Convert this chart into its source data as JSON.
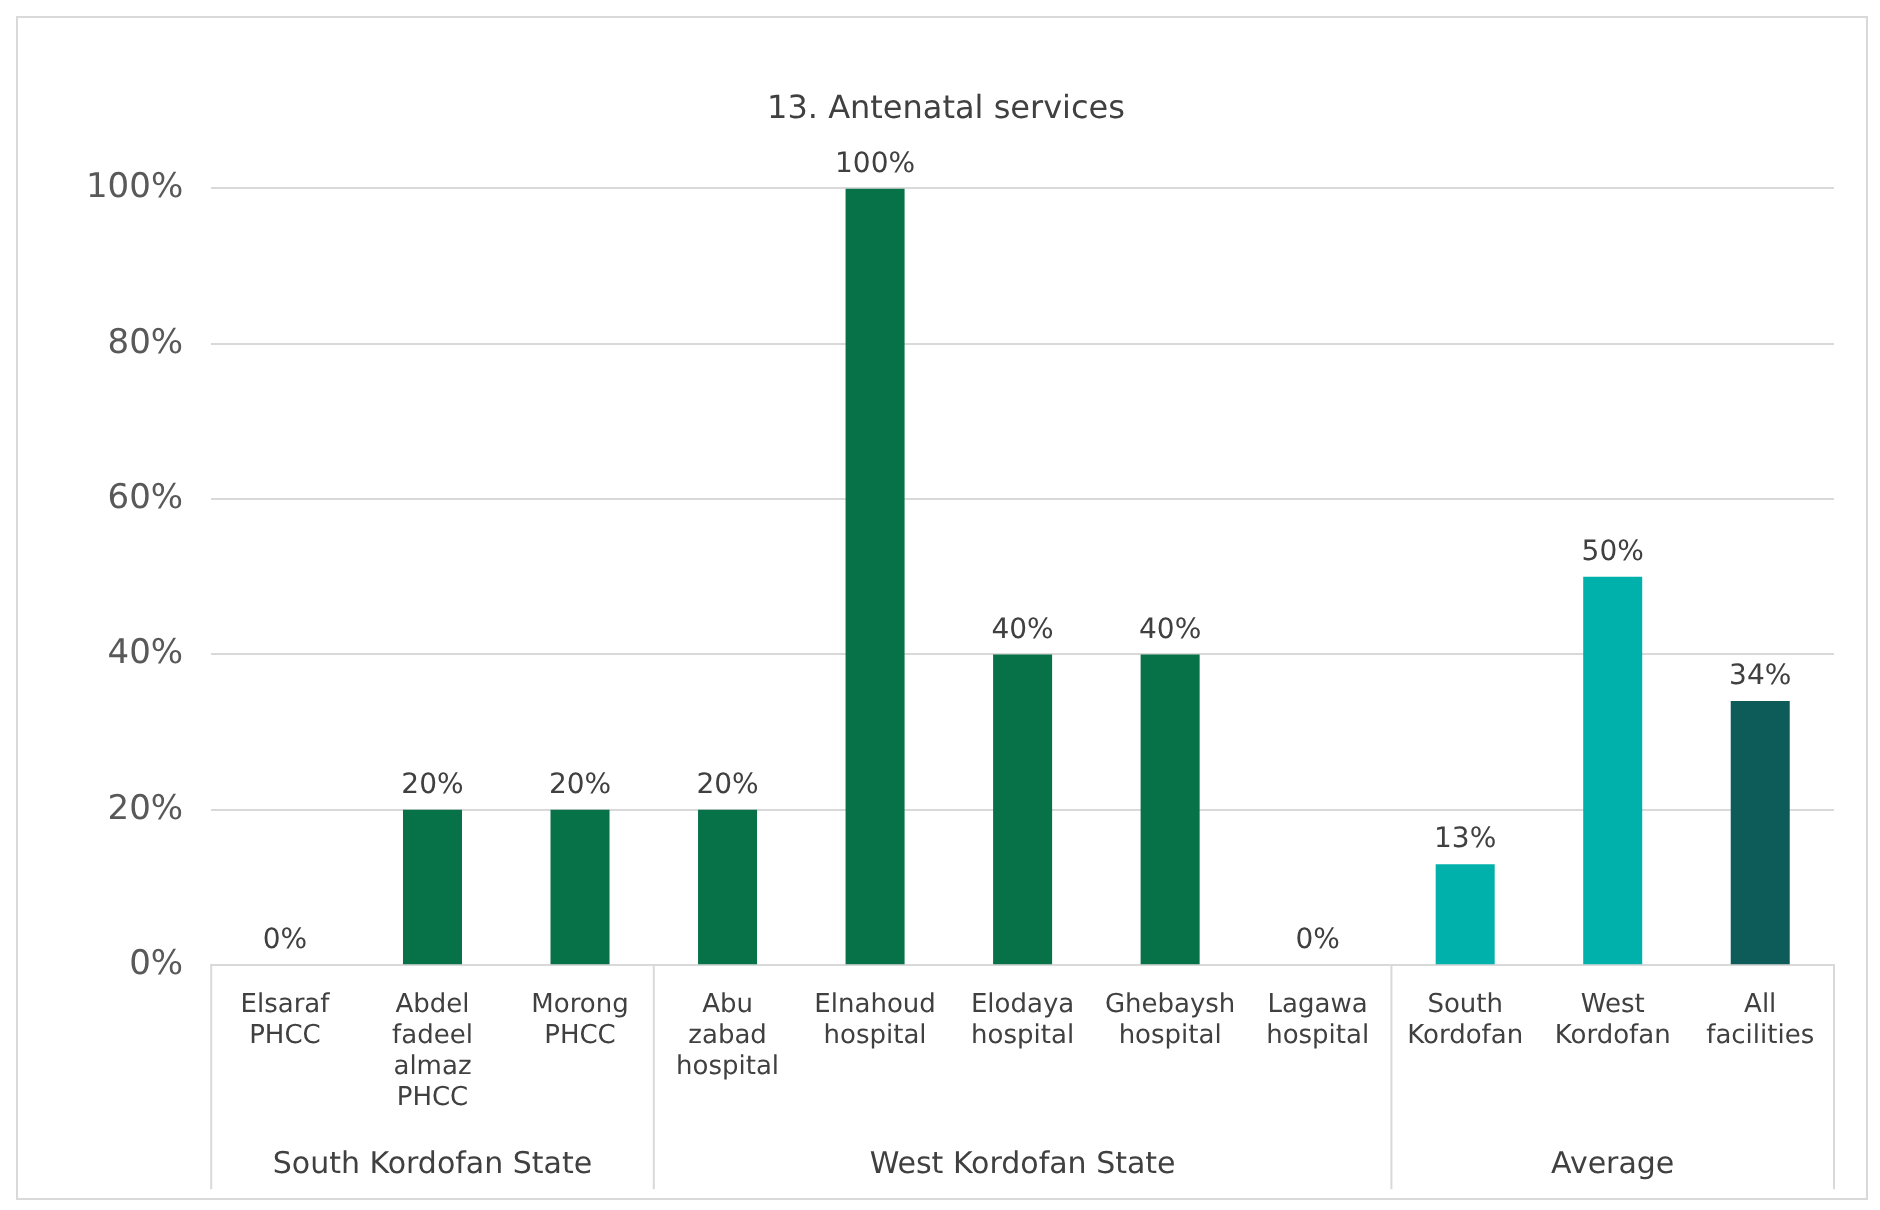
{
  "chart_data": {
    "type": "bar",
    "title": "13. Antenatal services",
    "categories": [
      "Elsaraf PHCC",
      "Abdel fadeel almaz PHCC",
      "Morong PHCC",
      "Abu zabad hospital",
      "Elnahoud hospital",
      "Elodaya hospital",
      "Ghebaysh hospital",
      "Lagawa hospital",
      "South Kordofan",
      "West Kordofan",
      "All facilities"
    ],
    "values": [
      0,
      20,
      20,
      20,
      100,
      40,
      40,
      0,
      13,
      50,
      34
    ],
    "colors": [
      "#077148",
      "#077148",
      "#077148",
      "#077148",
      "#077148",
      "#077148",
      "#077148",
      "#077148",
      "#00b0aa",
      "#00b0aa",
      "#0e5c5a"
    ],
    "value_labels": [
      "0%",
      "20%",
      "20%",
      "20%",
      "100%",
      "40%",
      "40%",
      "0%",
      "13%",
      "50%",
      "34%"
    ],
    "ylim": [
      0,
      100
    ],
    "yticks": [
      {
        "value": 0,
        "label": "0%"
      },
      {
        "value": 20,
        "label": "20%"
      },
      {
        "value": 40,
        "label": "40%"
      },
      {
        "value": 60,
        "label": "60%"
      },
      {
        "value": 80,
        "label": "80%"
      },
      {
        "value": 100,
        "label": "100%"
      }
    ],
    "grid": "y",
    "legend": false,
    "annotations": [
      "South Kordofan State",
      "West Kordofan State",
      "Average"
    ]
  }
}
